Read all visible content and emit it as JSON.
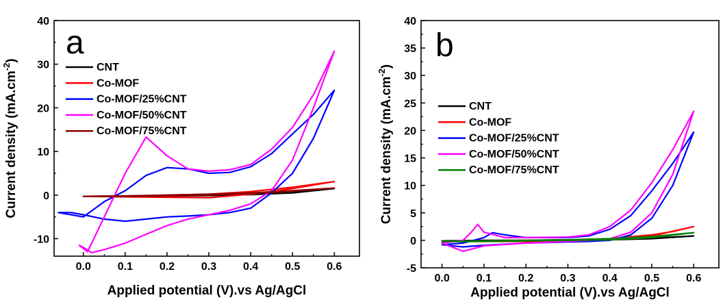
{
  "chart_data": [
    {
      "type": "line",
      "panel_label": "a",
      "xlabel": "Applied potential (V).vs Ag/AgCl",
      "ylabel": "Current density (mA.cm",
      "ylabel_sup": "-2",
      "ylabel_end": ")",
      "xlim": [
        -0.07,
        0.66
      ],
      "ylim": [
        -14,
        40
      ],
      "xticks": [
        0.0,
        0.1,
        0.2,
        0.3,
        0.4,
        0.5,
        0.6
      ],
      "xtick_labels": [
        "0.0",
        "0.1",
        "0.2",
        "0.3",
        "0.4",
        "0.5",
        "0.6"
      ],
      "yticks": [
        -10,
        0,
        10,
        20,
        30,
        40
      ],
      "ytick_labels": [
        "-10",
        "0",
        "10",
        "20",
        "30",
        "40"
      ],
      "grid": false,
      "legend_position": "top-left",
      "series": [
        {
          "name": "CNT",
          "color": "#000000",
          "x": [
            0.0,
            0.1,
            0.2,
            0.3,
            0.4,
            0.5,
            0.6,
            0.5,
            0.4,
            0.3,
            0.2,
            0.1,
            0.0
          ],
          "y": [
            -0.3,
            -0.25,
            -0.2,
            -0.1,
            0.1,
            0.5,
            1.5,
            0.9,
            0.4,
            0.1,
            -0.1,
            -0.2,
            -0.3
          ]
        },
        {
          "name": "Co-MOF",
          "color": "#ff0000",
          "x": [
            0.0,
            0.1,
            0.2,
            0.3,
            0.4,
            0.5,
            0.6,
            0.5,
            0.4,
            0.3,
            0.2,
            0.1,
            0.0
          ],
          "y": [
            -0.3,
            -0.2,
            0.0,
            0.2,
            0.8,
            1.8,
            3.1,
            1.5,
            0.2,
            -0.6,
            -0.5,
            -0.4,
            -0.3
          ]
        },
        {
          "name": "Co-MOF/25%CNT",
          "color": "#0000ff",
          "x": [
            -0.06,
            0.0,
            0.05,
            0.1,
            0.15,
            0.2,
            0.25,
            0.3,
            0.35,
            0.4,
            0.45,
            0.5,
            0.55,
            0.6,
            0.55,
            0.5,
            0.45,
            0.4,
            0.35,
            0.3,
            0.25,
            0.2,
            0.15,
            0.1,
            0.05,
            0.0,
            -0.03,
            -0.06
          ],
          "y": [
            -4.0,
            -5.0,
            -1.5,
            1.0,
            4.5,
            6.3,
            6.0,
            5.0,
            5.2,
            6.5,
            9.5,
            14.0,
            18.5,
            24.0,
            13.0,
            5.0,
            0.5,
            -3.0,
            -4.0,
            -4.5,
            -4.8,
            -5.0,
            -5.5,
            -6.0,
            -5.5,
            -4.5,
            -4.0,
            -4.0
          ]
        },
        {
          "name": "Co-MOF/50%CNT",
          "color": "#ff00ff",
          "x": [
            -0.01,
            0.01,
            0.05,
            0.1,
            0.15,
            0.2,
            0.25,
            0.3,
            0.35,
            0.4,
            0.45,
            0.5,
            0.55,
            0.6,
            0.55,
            0.5,
            0.45,
            0.4,
            0.35,
            0.3,
            0.25,
            0.2,
            0.15,
            0.1,
            0.05,
            0.02,
            0.0,
            -0.01
          ],
          "y": [
            -11.5,
            -13.0,
            -5.0,
            5.0,
            13.3,
            9.0,
            6.0,
            5.5,
            5.8,
            7.0,
            10.5,
            15.5,
            23.0,
            33.0,
            20.0,
            8.0,
            1.0,
            -2.0,
            -3.5,
            -4.5,
            -5.5,
            -7.0,
            -9.0,
            -11.0,
            -12.5,
            -13.2,
            -12.0,
            -11.5
          ]
        },
        {
          "name": "Co-MOF/75%CNT",
          "color": "#8b0000",
          "x": [
            0.0,
            0.1,
            0.2,
            0.3,
            0.4,
            0.5,
            0.6,
            0.5,
            0.4,
            0.3,
            0.2,
            0.1,
            0.0
          ],
          "y": [
            -0.3,
            -0.2,
            0.0,
            0.2,
            0.5,
            1.0,
            1.6,
            0.9,
            0.4,
            0.0,
            -0.2,
            -0.3,
            -0.3
          ]
        }
      ]
    },
    {
      "type": "line",
      "panel_label": "b",
      "xlabel": "Applied potential (V).vs Ag/AgCl",
      "ylabel": "Current density (mA.cm",
      "ylabel_sup": "-2",
      "ylabel_end": ")",
      "xlim": [
        -0.05,
        0.66
      ],
      "ylim": [
        -5,
        40
      ],
      "xticks": [
        0.0,
        0.1,
        0.2,
        0.3,
        0.4,
        0.5,
        0.6
      ],
      "xtick_labels": [
        "0.0",
        "0.1",
        "0.2",
        "0.3",
        "0.4",
        "0.5",
        "0.6"
      ],
      "yticks": [
        -5,
        0,
        5,
        10,
        15,
        20,
        25,
        30,
        35,
        40
      ],
      "ytick_labels": [
        "-5",
        "0",
        "5",
        "10",
        "15",
        "20",
        "25",
        "30",
        "35",
        "40"
      ],
      "grid": false,
      "legend_position": "middle-left",
      "series": [
        {
          "name": "CNT",
          "color": "#000000",
          "x": [
            0.0,
            0.1,
            0.2,
            0.3,
            0.4,
            0.5,
            0.6,
            0.5,
            0.4,
            0.3,
            0.2,
            0.1,
            0.0
          ],
          "y": [
            -0.1,
            0.0,
            0.0,
            0.1,
            0.2,
            0.4,
            0.8,
            0.3,
            0.1,
            0.0,
            -0.1,
            -0.1,
            -0.1
          ]
        },
        {
          "name": "Co-MOF",
          "color": "#ff0000",
          "x": [
            0.0,
            0.1,
            0.2,
            0.3,
            0.4,
            0.5,
            0.55,
            0.6,
            0.5,
            0.4,
            0.3,
            0.2,
            0.1,
            0.0
          ],
          "y": [
            -0.2,
            -0.1,
            0.0,
            0.1,
            0.3,
            1.0,
            1.6,
            2.5,
            0.8,
            0.1,
            -0.1,
            -0.2,
            -0.2,
            -0.2
          ]
        },
        {
          "name": "Co-MOF/25%CNT",
          "color": "#0000ff",
          "x": [
            0.0,
            0.05,
            0.1,
            0.12,
            0.15,
            0.2,
            0.3,
            0.35,
            0.4,
            0.45,
            0.5,
            0.55,
            0.6,
            0.55,
            0.5,
            0.45,
            0.4,
            0.35,
            0.3,
            0.2,
            0.1,
            0.05,
            0.0
          ],
          "y": [
            -0.8,
            -0.5,
            0.5,
            1.4,
            1.0,
            0.5,
            0.5,
            0.8,
            2.0,
            4.5,
            9.0,
            14.0,
            19.7,
            10.0,
            4.0,
            1.0,
            0.0,
            -0.2,
            -0.3,
            -0.5,
            -0.9,
            -1.2,
            -0.8
          ]
        },
        {
          "name": "Co-MOF/50%CNT",
          "color": "#ff00ff",
          "x": [
            0.0,
            0.05,
            0.07,
            0.085,
            0.1,
            0.15,
            0.2,
            0.3,
            0.35,
            0.4,
            0.45,
            0.5,
            0.55,
            0.6,
            0.55,
            0.5,
            0.45,
            0.4,
            0.35,
            0.3,
            0.2,
            0.1,
            0.05,
            0.0
          ],
          "y": [
            -0.5,
            0.0,
            1.5,
            2.9,
            1.5,
            0.5,
            0.5,
            0.6,
            1.0,
            2.5,
            5.5,
            10.5,
            16.5,
            23.5,
            12.0,
            5.0,
            1.5,
            0.3,
            0.0,
            -0.2,
            -0.5,
            -1.0,
            -2.0,
            -0.5
          ]
        },
        {
          "name": "Co-MOF/75%CNT",
          "color": "#008000",
          "x": [
            0.0,
            0.1,
            0.2,
            0.3,
            0.4,
            0.5,
            0.6,
            0.5,
            0.4,
            0.3,
            0.2,
            0.1,
            0.0
          ],
          "y": [
            -0.2,
            -0.1,
            0.0,
            0.1,
            0.3,
            0.7,
            1.4,
            0.5,
            0.1,
            0.0,
            -0.1,
            -0.2,
            -0.2
          ]
        }
      ]
    }
  ]
}
